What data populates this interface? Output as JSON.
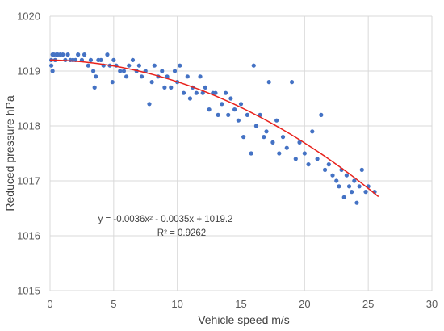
{
  "chart_data": {
    "type": "scatter",
    "title": "",
    "xlabel": "Vehicle speed m/s",
    "ylabel": "Reduced pressure hPa",
    "xlim": [
      0,
      30
    ],
    "ylim": [
      1015,
      1020
    ],
    "x_ticks": [
      "0",
      "5",
      "10",
      "15",
      "20",
      "25",
      "30"
    ],
    "y_ticks": [
      "1015",
      "1016",
      "1017",
      "1018",
      "1019",
      "1020"
    ],
    "grid": true,
    "legend": "none",
    "colors": {
      "points": "#4472c4",
      "trendline": "#e8211b",
      "grid": "#d9d9d9"
    },
    "trendline": {
      "type": "polynomial",
      "order": 2,
      "coefficients": {
        "a": -0.0036,
        "b": -0.0035,
        "c": 1019.2
      },
      "x_range": [
        0,
        25.8
      ]
    },
    "annotations": {
      "equation": "y = -0.0036x² - 0.0035x + 1019.2",
      "r_squared": "R² = 0.9262"
    },
    "series": [
      {
        "points": [
          [
            0.1,
            1019.1
          ],
          [
            0.1,
            1019.2
          ],
          [
            0.2,
            1019.0
          ],
          [
            0.2,
            1019.3
          ],
          [
            0.3,
            1019.3
          ],
          [
            0.4,
            1019.2
          ],
          [
            0.5,
            1019.3
          ],
          [
            0.6,
            1019.3
          ],
          [
            0.8,
            1019.3
          ],
          [
            1.0,
            1019.3
          ],
          [
            1.2,
            1019.2
          ],
          [
            1.4,
            1019.3
          ],
          [
            1.6,
            1019.2
          ],
          [
            1.8,
            1019.2
          ],
          [
            2.0,
            1019.2
          ],
          [
            2.2,
            1019.3
          ],
          [
            2.5,
            1019.2
          ],
          [
            2.7,
            1019.3
          ],
          [
            3.0,
            1019.1
          ],
          [
            3.2,
            1019.2
          ],
          [
            3.4,
            1019.0
          ],
          [
            3.5,
            1018.7
          ],
          [
            3.6,
            1018.9
          ],
          [
            3.8,
            1019.2
          ],
          [
            4.0,
            1019.2
          ],
          [
            4.2,
            1019.1
          ],
          [
            4.5,
            1019.3
          ],
          [
            4.7,
            1019.1
          ],
          [
            4.9,
            1018.8
          ],
          [
            5.0,
            1019.2
          ],
          [
            5.2,
            1019.1
          ],
          [
            5.5,
            1019.0
          ],
          [
            5.8,
            1019.0
          ],
          [
            6.0,
            1018.9
          ],
          [
            6.2,
            1019.1
          ],
          [
            6.5,
            1019.2
          ],
          [
            6.8,
            1019.0
          ],
          [
            7.0,
            1019.1
          ],
          [
            7.2,
            1018.9
          ],
          [
            7.5,
            1019.0
          ],
          [
            7.8,
            1018.4
          ],
          [
            8.0,
            1018.8
          ],
          [
            8.2,
            1019.1
          ],
          [
            8.5,
            1018.9
          ],
          [
            8.8,
            1019.0
          ],
          [
            9.0,
            1018.7
          ],
          [
            9.2,
            1018.9
          ],
          [
            9.5,
            1018.7
          ],
          [
            9.8,
            1019.0
          ],
          [
            10.0,
            1018.8
          ],
          [
            10.2,
            1019.1
          ],
          [
            10.5,
            1018.6
          ],
          [
            10.8,
            1018.9
          ],
          [
            11.0,
            1018.5
          ],
          [
            11.2,
            1018.7
          ],
          [
            11.5,
            1018.6
          ],
          [
            11.8,
            1018.9
          ],
          [
            12.0,
            1018.6
          ],
          [
            12.2,
            1018.7
          ],
          [
            12.5,
            1018.3
          ],
          [
            12.8,
            1018.6
          ],
          [
            13.0,
            1018.6
          ],
          [
            13.2,
            1018.2
          ],
          [
            13.5,
            1018.4
          ],
          [
            13.8,
            1018.6
          ],
          [
            14.0,
            1018.2
          ],
          [
            14.2,
            1018.5
          ],
          [
            14.5,
            1018.3
          ],
          [
            14.8,
            1018.1
          ],
          [
            15.0,
            1018.4
          ],
          [
            15.2,
            1017.8
          ],
          [
            15.5,
            1018.2
          ],
          [
            15.8,
            1017.5
          ],
          [
            16.0,
            1019.1
          ],
          [
            16.2,
            1018.0
          ],
          [
            16.5,
            1018.2
          ],
          [
            16.8,
            1017.8
          ],
          [
            17.0,
            1017.9
          ],
          [
            17.2,
            1018.8
          ],
          [
            17.5,
            1017.7
          ],
          [
            17.8,
            1018.1
          ],
          [
            18.0,
            1017.5
          ],
          [
            18.3,
            1017.8
          ],
          [
            18.6,
            1017.6
          ],
          [
            19.0,
            1018.8
          ],
          [
            19.3,
            1017.4
          ],
          [
            19.6,
            1017.7
          ],
          [
            20.0,
            1017.5
          ],
          [
            20.3,
            1017.3
          ],
          [
            20.6,
            1017.9
          ],
          [
            21.0,
            1017.4
          ],
          [
            21.3,
            1018.2
          ],
          [
            21.6,
            1017.2
          ],
          [
            21.9,
            1017.3
          ],
          [
            22.2,
            1017.1
          ],
          [
            22.5,
            1017.0
          ],
          [
            22.7,
            1016.9
          ],
          [
            22.9,
            1017.2
          ],
          [
            23.1,
            1016.7
          ],
          [
            23.3,
            1017.1
          ],
          [
            23.5,
            1016.9
          ],
          [
            23.7,
            1016.8
          ],
          [
            23.9,
            1017.0
          ],
          [
            24.1,
            1016.6
          ],
          [
            24.3,
            1016.9
          ],
          [
            24.5,
            1017.2
          ],
          [
            24.8,
            1016.8
          ],
          [
            25.0,
            1016.9
          ],
          [
            25.5,
            1016.8
          ]
        ]
      }
    ]
  }
}
